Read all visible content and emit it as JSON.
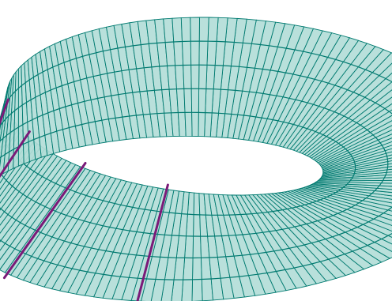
{
  "surface": {
    "fill_color": "#b3ddd8",
    "line_color": "#007a70",
    "band_rulings": 170,
    "longitudinal_lines": 5
  },
  "highlighted_rulings": {
    "color": "#7a1a78",
    "count": 4
  }
}
